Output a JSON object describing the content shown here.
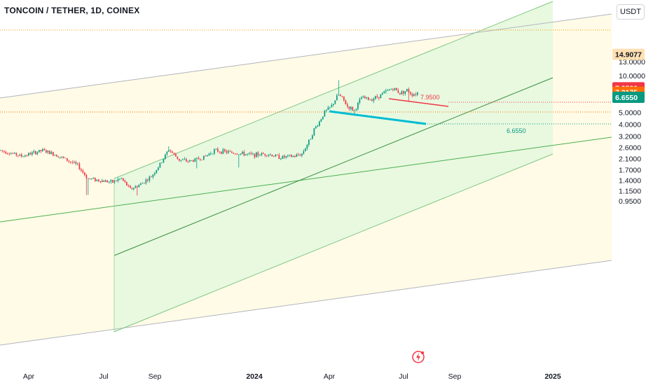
{
  "header": {
    "title": "TONCOIN / TETHER, 1D, COINEX"
  },
  "toolbar": {
    "currency": "USDT"
  },
  "chart_data": {
    "type": "candlestick",
    "title": "TONCOIN / TETHER, 1D, COINEX",
    "scale": "log",
    "y_ticks": [
      "13.0000",
      "10.0000",
      "5.0000",
      "4.0000",
      "3.2000",
      "2.6000",
      "2.1000",
      "1.7000",
      "1.4000",
      "1.1500",
      "0.9500"
    ],
    "y_tick_values": [
      13.0,
      10.0,
      5.0,
      4.0,
      3.2,
      2.6,
      2.1,
      1.7,
      1.4,
      1.15,
      0.95
    ],
    "x_ticks": [
      "Apr",
      "Jul",
      "Sep",
      "2024",
      "Apr",
      "Jul",
      "Sep",
      "2025"
    ],
    "price_tags": [
      {
        "label": "14.9077",
        "value": 14.9077,
        "color": "#ffe0b2",
        "text_color": "#131722"
      },
      {
        "label": "7.9500",
        "value": 7.95,
        "color": "#f23645",
        "text_color": "#ffffff"
      },
      {
        "label": "7.3175",
        "value": 7.3175,
        "color": "#ff6d00",
        "text_color": "#ffffff"
      },
      {
        "label": "6.6550",
        "value": 6.655,
        "color": "#089981",
        "text_color": "#ffffff"
      }
    ],
    "annotations": [
      {
        "label": "7.9500",
        "value": 7.95,
        "color": "#f23645"
      },
      {
        "label": "6.6550",
        "value": 6.655,
        "color": "#089981"
      }
    ],
    "colors": {
      "up": "#089981",
      "down": "#f23645",
      "channel_fill": "#e8f9e0",
      "outer_fill": "#fffbe6",
      "channel_line": "#4caf50"
    },
    "price_keypoints": [
      {
        "x": 0,
        "v": 2.45
      },
      {
        "x": 30,
        "v": 2.2
      },
      {
        "x": 60,
        "v": 2.45
      },
      {
        "x": 80,
        "v": 2.25
      },
      {
        "x": 110,
        "v": 1.85
      },
      {
        "x": 124,
        "v": 1.45
      },
      {
        "x": 140,
        "v": 1.4
      },
      {
        "x": 160,
        "v": 1.35
      },
      {
        "x": 172,
        "v": 1.45
      },
      {
        "x": 185,
        "v": 1.18
      },
      {
        "x": 200,
        "v": 1.3
      },
      {
        "x": 215,
        "v": 1.5
      },
      {
        "x": 228,
        "v": 1.9
      },
      {
        "x": 240,
        "v": 2.5
      },
      {
        "x": 255,
        "v": 2.05
      },
      {
        "x": 270,
        "v": 2.0
      },
      {
        "x": 290,
        "v": 2.15
      },
      {
        "x": 305,
        "v": 2.45
      },
      {
        "x": 330,
        "v": 2.35
      },
      {
        "x": 345,
        "v": 2.3
      },
      {
        "x": 360,
        "v": 2.25
      },
      {
        "x": 380,
        "v": 2.3
      },
      {
        "x": 400,
        "v": 2.15
      },
      {
        "x": 420,
        "v": 2.2
      },
      {
        "x": 430,
        "v": 2.3
      },
      {
        "x": 440,
        "v": 2.9
      },
      {
        "x": 447,
        "v": 3.6
      },
      {
        "x": 455,
        "v": 4.2
      },
      {
        "x": 462,
        "v": 5.0
      },
      {
        "x": 472,
        "v": 5.6
      },
      {
        "x": 482,
        "v": 7.0
      },
      {
        "x": 488,
        "v": 6.5
      },
      {
        "x": 495,
        "v": 5.6
      },
      {
        "x": 505,
        "v": 5.2
      },
      {
        "x": 515,
        "v": 6.6
      },
      {
        "x": 528,
        "v": 6.4
      },
      {
        "x": 540,
        "v": 6.8
      },
      {
        "x": 552,
        "v": 7.5
      },
      {
        "x": 560,
        "v": 7.9
      },
      {
        "x": 570,
        "v": 7.2
      },
      {
        "x": 580,
        "v": 7.6
      },
      {
        "x": 588,
        "v": 7.0
      },
      {
        "x": 596,
        "v": 7.3
      }
    ]
  }
}
